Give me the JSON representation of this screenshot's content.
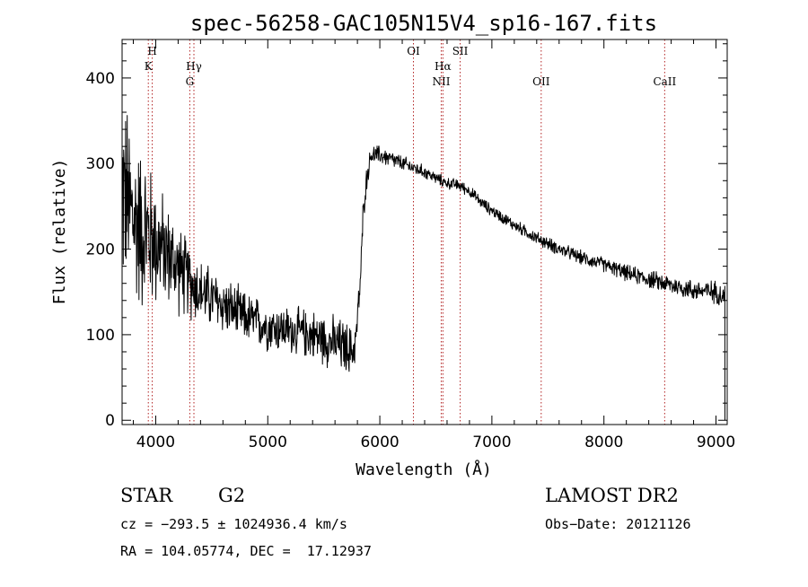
{
  "chart_data": {
    "type": "line",
    "title": "spec-56258-GAC105N15V4_sp16-167.fits",
    "xlabel": "Wavelength (Å)",
    "ylabel": "Flux (relative)",
    "xlim": [
      3700,
      9100
    ],
    "ylim": [
      -5,
      445
    ],
    "x_ticks": [
      4000,
      5000,
      6000,
      7000,
      8000,
      9000
    ],
    "y_ticks": [
      0,
      100,
      200,
      300,
      400
    ],
    "x_tick_labels": [
      "4000",
      "5000",
      "6000",
      "7000",
      "8000",
      "9000"
    ],
    "y_tick_labels": [
      "0",
      "100",
      "200",
      "300",
      "400"
    ],
    "grid": false,
    "line_color": "#000000",
    "marker_color": "#b22222",
    "series": [
      {
        "continuum": [
          [
            3700,
            270
          ],
          [
            3800,
            235
          ],
          [
            3950,
            215
          ],
          [
            4100,
            195
          ],
          [
            4250,
            170
          ],
          [
            4400,
            150
          ],
          [
            4600,
            135
          ],
          [
            4800,
            120
          ],
          [
            5000,
            110
          ],
          [
            5200,
            105
          ],
          [
            5400,
            100
          ],
          [
            5600,
            90
          ],
          [
            5760,
            80
          ],
          [
            5790,
            100
          ],
          [
            5830,
            170
          ],
          [
            5850,
            240
          ],
          [
            5880,
            280
          ],
          [
            5920,
            310
          ],
          [
            6000,
            310
          ],
          [
            6100,
            305
          ],
          [
            6200,
            300
          ],
          [
            6300,
            295
          ],
          [
            6400,
            290
          ],
          [
            6500,
            283
          ],
          [
            6600,
            277
          ],
          [
            6700,
            275
          ],
          [
            6800,
            268
          ],
          [
            6900,
            255
          ],
          [
            7000,
            245
          ],
          [
            7200,
            228
          ],
          [
            7400,
            213
          ],
          [
            7600,
            200
          ],
          [
            7800,
            190
          ],
          [
            8000,
            182
          ],
          [
            8200,
            172
          ],
          [
            8400,
            165
          ],
          [
            8600,
            158
          ],
          [
            8800,
            152
          ],
          [
            9000,
            150
          ],
          [
            9080,
            145
          ]
        ],
        "noise_amplitude": [
          [
            3700,
            140
          ],
          [
            3900,
            110
          ],
          [
            4100,
            70
          ],
          [
            4400,
            45
          ],
          [
            4800,
            35
          ],
          [
            5200,
            32
          ],
          [
            5700,
            38
          ],
          [
            5900,
            14
          ],
          [
            6500,
            8
          ],
          [
            7000,
            8
          ],
          [
            8000,
            10
          ],
          [
            8700,
            14
          ],
          [
            9080,
            16
          ]
        ]
      }
    ],
    "line_markers": [
      {
        "x": 3934,
        "label": "K",
        "row": 1
      },
      {
        "x": 3969,
        "label": "H",
        "row": 0
      },
      {
        "x": 4304,
        "label": "G",
        "row": 2
      },
      {
        "x": 4341,
        "label": "Hγ",
        "row": 1
      },
      {
        "x": 6300,
        "label": "OI",
        "row": 0
      },
      {
        "x": 6548,
        "label": "NII",
        "row": 2
      },
      {
        "x": 6563,
        "label": "Hα",
        "row": 1
      },
      {
        "x": 6717,
        "label": "SII",
        "row": 0
      },
      {
        "x": 7440,
        "label": "OII",
        "row": 2
      },
      {
        "x": 8542,
        "label": "CaII",
        "row": 2
      }
    ]
  },
  "info": {
    "class_label": "STAR",
    "subclass_label": "G2",
    "survey": "LAMOST DR2",
    "cz": "cz = −293.5 ± 1024936.4 km/s",
    "obs_date": "Obs−Date: 20121126",
    "coords": "RA = 104.05774, DEC =  17.12937"
  }
}
